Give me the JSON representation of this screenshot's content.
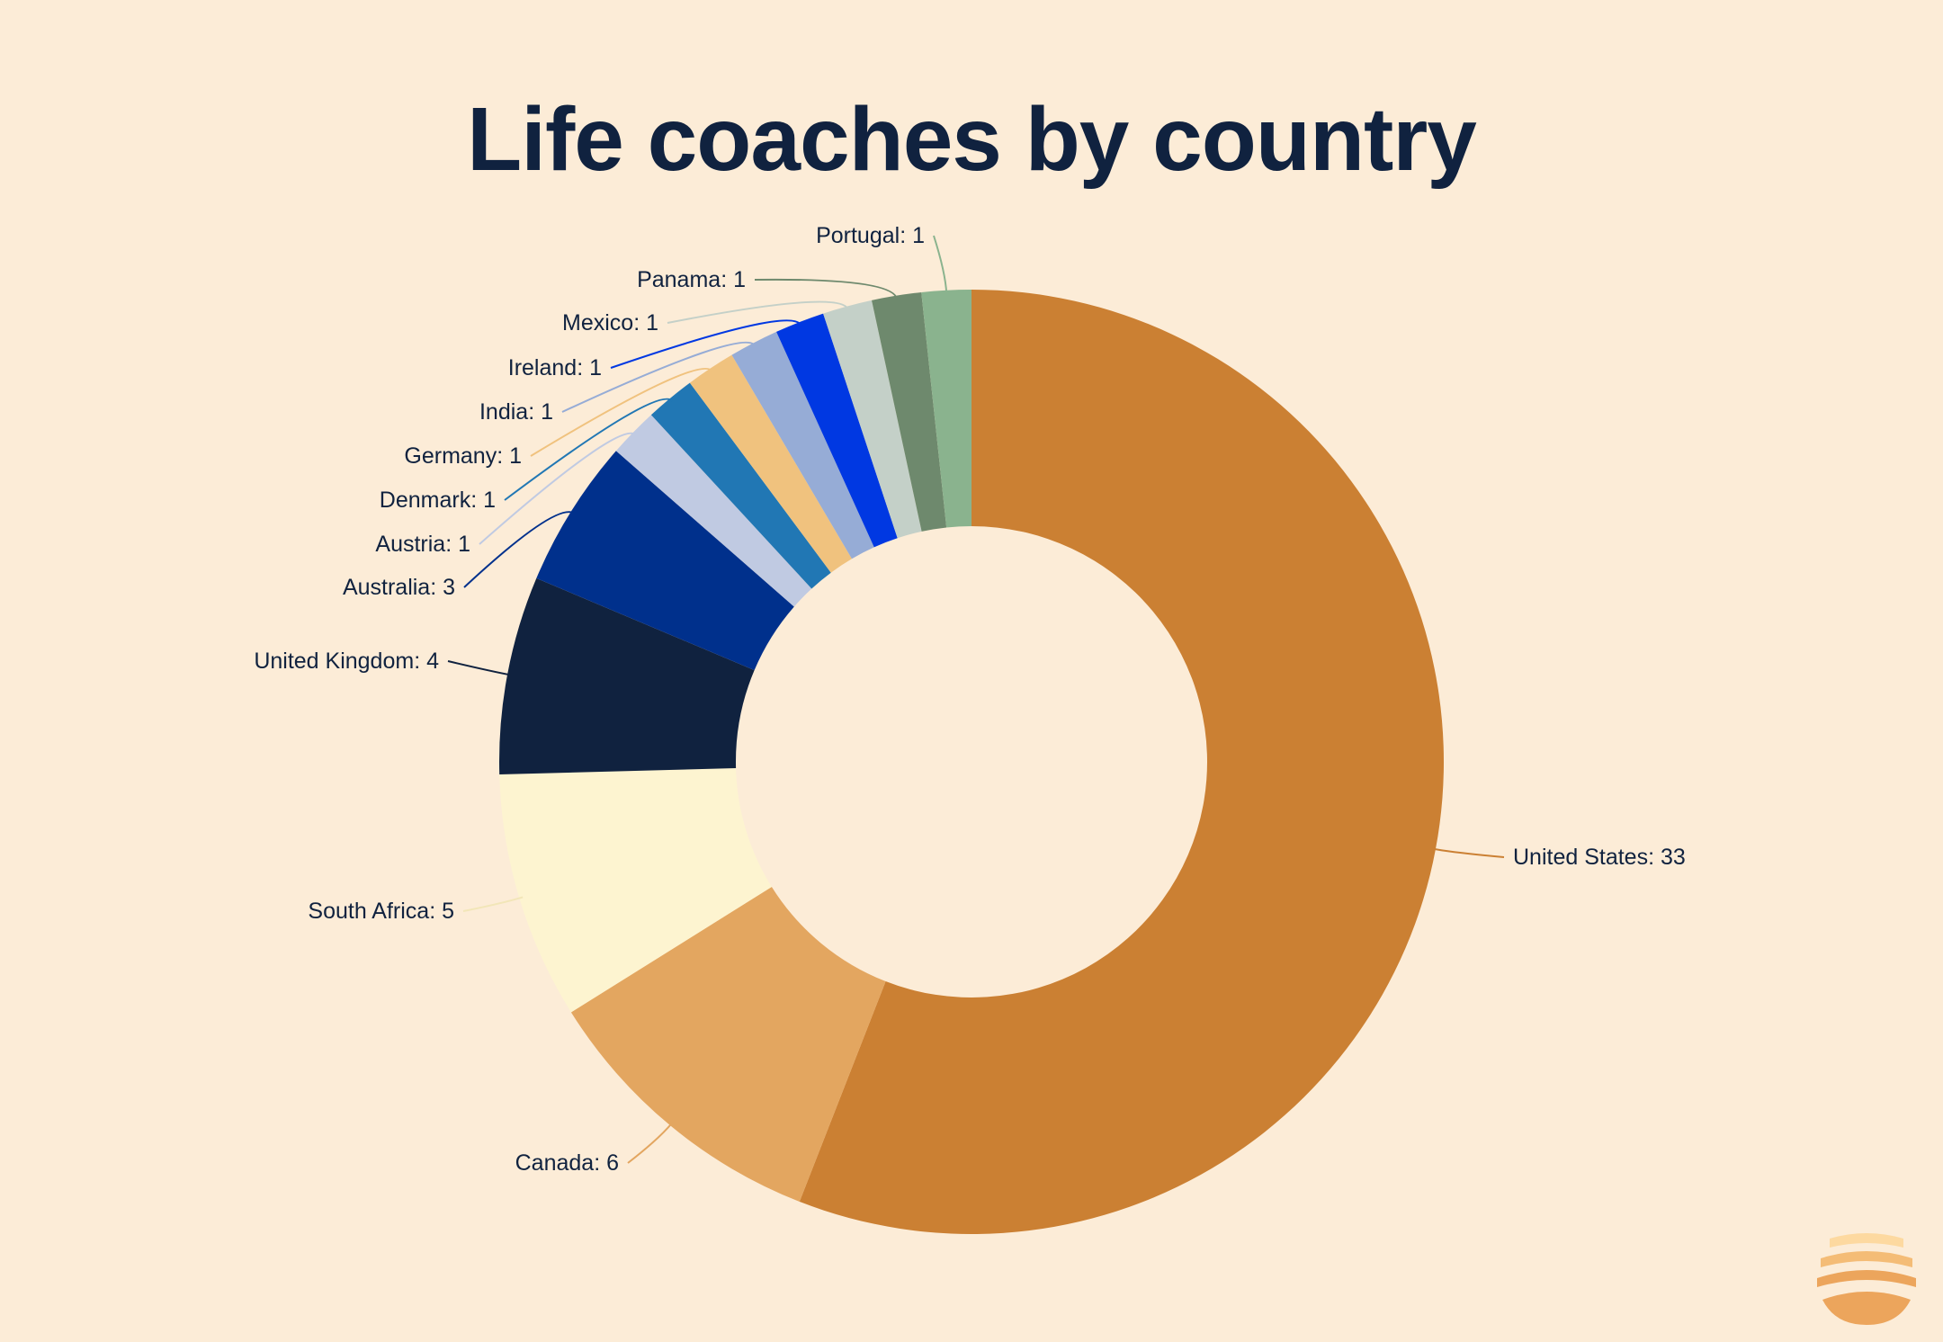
{
  "chart_data": {
    "type": "pie",
    "variant": "donut",
    "title": "Life coaches by country",
    "slices": [
      {
        "label": "United States",
        "value": 33,
        "display": "United States: 33",
        "color": "#cb8033"
      },
      {
        "label": "Canada",
        "value": 6,
        "display": "Canada: 6",
        "color": "#e3a660"
      },
      {
        "label": "South Africa",
        "value": 5,
        "display": "South Africa: 5",
        "color": "#fdf4d0"
      },
      {
        "label": "United Kingdom",
        "value": 4,
        "display": "United Kingdom: 4",
        "color": "#10223f"
      },
      {
        "label": "Australia",
        "value": 3,
        "display": "Australia: 3",
        "color": "#00308c"
      },
      {
        "label": "Austria",
        "value": 1,
        "display": "Austria: 1",
        "color": "#c0cae2"
      },
      {
        "label": "Denmark",
        "value": 1,
        "display": "Denmark: 1",
        "color": "#2177b4"
      },
      {
        "label": "Germany",
        "value": 1,
        "display": "Germany: 1",
        "color": "#f0c27e"
      },
      {
        "label": "India",
        "value": 1,
        "display": "India: 1",
        "color": "#96acd6"
      },
      {
        "label": "Ireland",
        "value": 1,
        "display": "Ireland: 1",
        "color": "#0038e2"
      },
      {
        "label": "Mexico",
        "value": 1,
        "display": "Mexico: 1",
        "color": "#c4d0c8"
      },
      {
        "label": "Panama",
        "value": 1,
        "display": "Panama: 1",
        "color": "#6e896d"
      },
      {
        "label": "Portugal",
        "value": 1,
        "display": "Portugal: 1",
        "color": "#8ab38e"
      }
    ],
    "start": "12 o'clock",
    "direction": "clockwise"
  },
  "background_color": "#fcecd7",
  "text_color": "#10223f",
  "logo": {
    "icon": "sun-over-waves-icon",
    "colors": [
      "#fdd9a0",
      "#f4bc76",
      "#eca55c"
    ]
  }
}
